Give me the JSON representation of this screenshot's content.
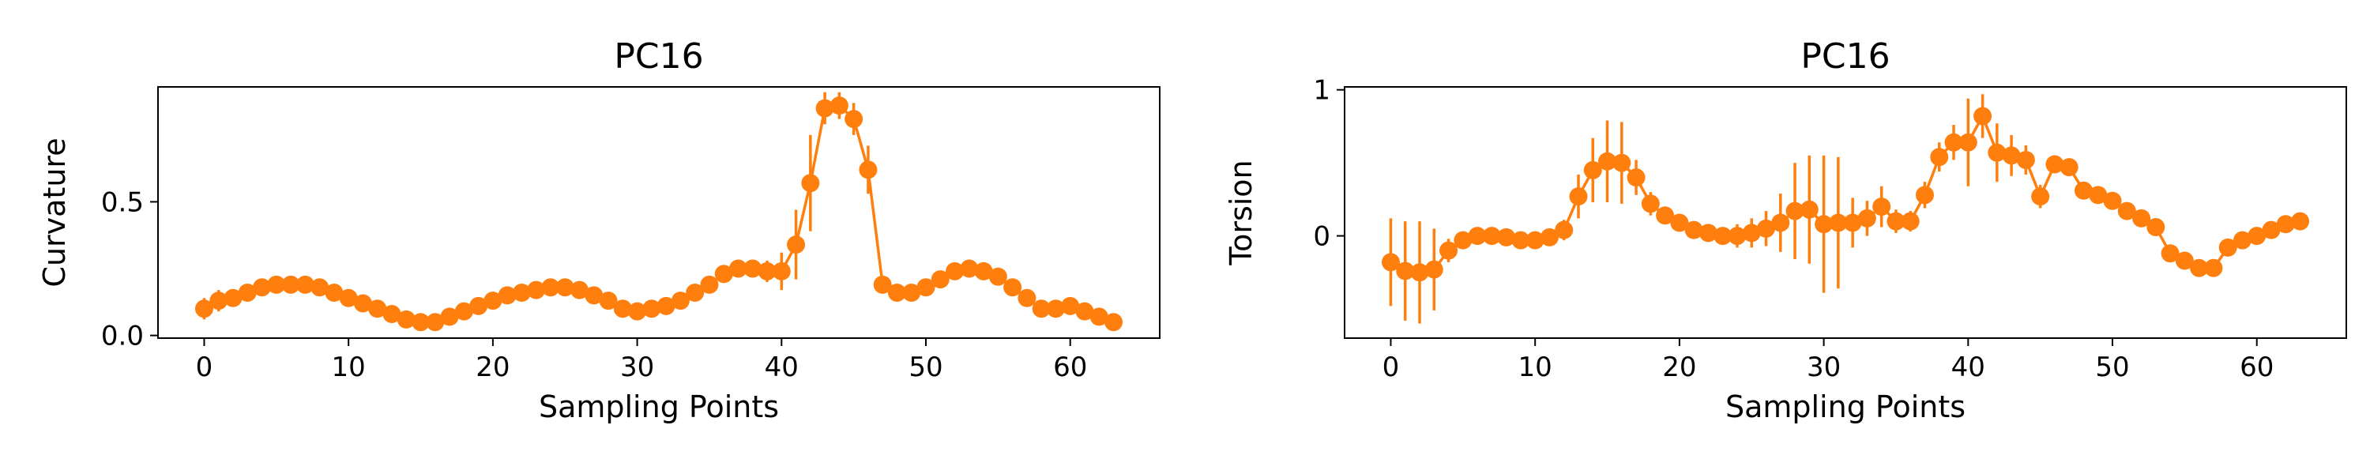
{
  "chart_data": [
    {
      "type": "line",
      "title": "PC16",
      "xlabel": "Sampling Points",
      "ylabel": "Curvature",
      "xlim": [
        -3.2,
        66.2
      ],
      "ylim": [
        -0.01,
        0.93
      ],
      "xticks": [
        0,
        10,
        20,
        30,
        40,
        50,
        60
      ],
      "yticks": [
        0.0,
        0.5
      ],
      "ytick_labels": [
        "0.0",
        "0.5"
      ],
      "color": "#ff7f0e",
      "markers": true,
      "error_bars": true,
      "x": [
        0,
        1,
        2,
        3,
        4,
        5,
        6,
        7,
        8,
        9,
        10,
        11,
        12,
        13,
        14,
        15,
        16,
        17,
        18,
        19,
        20,
        21,
        22,
        23,
        24,
        25,
        26,
        27,
        28,
        29,
        30,
        31,
        32,
        33,
        34,
        35,
        36,
        37,
        38,
        39,
        40,
        41,
        42,
        43,
        44,
        45,
        46,
        47,
        48,
        49,
        50,
        51,
        52,
        53,
        54,
        55,
        56,
        57,
        58,
        59,
        60,
        61,
        62,
        63
      ],
      "y": [
        0.1,
        0.13,
        0.14,
        0.16,
        0.18,
        0.19,
        0.19,
        0.19,
        0.18,
        0.16,
        0.14,
        0.12,
        0.1,
        0.08,
        0.06,
        0.05,
        0.05,
        0.07,
        0.09,
        0.11,
        0.13,
        0.15,
        0.16,
        0.17,
        0.18,
        0.18,
        0.17,
        0.15,
        0.13,
        0.1,
        0.09,
        0.1,
        0.11,
        0.13,
        0.16,
        0.19,
        0.23,
        0.25,
        0.25,
        0.24,
        0.24,
        0.34,
        0.57,
        0.85,
        0.86,
        0.81,
        0.62,
        0.19,
        0.16,
        0.16,
        0.18,
        0.21,
        0.24,
        0.25,
        0.24,
        0.22,
        0.18,
        0.14,
        0.1,
        0.1,
        0.11,
        0.09,
        0.07,
        0.05
      ],
      "yerr": [
        0.04,
        0.04,
        0.03,
        0.03,
        0.03,
        0.02,
        0.02,
        0.02,
        0.02,
        0.02,
        0.02,
        0.02,
        0.02,
        0.02,
        0.02,
        0.02,
        0.02,
        0.02,
        0.02,
        0.02,
        0.02,
        0.02,
        0.02,
        0.02,
        0.02,
        0.02,
        0.02,
        0.02,
        0.02,
        0.02,
        0.02,
        0.02,
        0.02,
        0.02,
        0.03,
        0.03,
        0.03,
        0.03,
        0.03,
        0.04,
        0.07,
        0.13,
        0.18,
        0.06,
        0.05,
        0.06,
        0.09,
        0.03,
        0.02,
        0.02,
        0.02,
        0.02,
        0.02,
        0.02,
        0.02,
        0.02,
        0.02,
        0.02,
        0.02,
        0.02,
        0.02,
        0.02,
        0.02,
        0.02
      ]
    },
    {
      "type": "line",
      "title": "PC16",
      "xlabel": "Sampling Points",
      "ylabel": "Torsion",
      "xlim": [
        -3.2,
        66.2
      ],
      "ylim": [
        -0.7,
        1.02
      ],
      "xticks": [
        0,
        10,
        20,
        30,
        40,
        50,
        60
      ],
      "yticks": [
        0,
        1
      ],
      "ytick_labels": [
        "0",
        "1"
      ],
      "color": "#ff7f0e",
      "markers": true,
      "error_bars": true,
      "x": [
        0,
        1,
        2,
        3,
        4,
        5,
        6,
        7,
        8,
        9,
        10,
        11,
        12,
        13,
        14,
        15,
        16,
        17,
        18,
        19,
        20,
        21,
        22,
        23,
        24,
        25,
        26,
        27,
        28,
        29,
        30,
        31,
        32,
        33,
        34,
        35,
        36,
        37,
        38,
        39,
        40,
        41,
        42,
        43,
        44,
        45,
        46,
        47,
        48,
        49,
        50,
        51,
        52,
        53,
        54,
        55,
        56,
        57,
        58,
        59,
        60,
        61,
        62,
        63
      ],
      "y": [
        -0.18,
        -0.24,
        -0.25,
        -0.23,
        -0.1,
        -0.03,
        0.0,
        0.0,
        -0.01,
        -0.03,
        -0.03,
        -0.01,
        0.04,
        0.27,
        0.45,
        0.51,
        0.5,
        0.4,
        0.22,
        0.14,
        0.09,
        0.04,
        0.02,
        0.0,
        0.0,
        0.02,
        0.05,
        0.09,
        0.17,
        0.18,
        0.08,
        0.09,
        0.09,
        0.12,
        0.2,
        0.1,
        0.1,
        0.28,
        0.54,
        0.64,
        0.64,
        0.82,
        0.57,
        0.55,
        0.52,
        0.27,
        0.49,
        0.47,
        0.31,
        0.28,
        0.24,
        0.17,
        0.12,
        0.06,
        -0.12,
        -0.17,
        -0.22,
        -0.22,
        -0.08,
        -0.03,
        0.0,
        0.04,
        0.08,
        0.1
      ],
      "yerr": [
        0.3,
        0.34,
        0.35,
        0.28,
        0.08,
        0.05,
        0.04,
        0.04,
        0.04,
        0.04,
        0.04,
        0.04,
        0.07,
        0.15,
        0.22,
        0.28,
        0.28,
        0.12,
        0.08,
        0.06,
        0.05,
        0.05,
        0.06,
        0.06,
        0.08,
        0.1,
        0.12,
        0.2,
        0.33,
        0.37,
        0.47,
        0.45,
        0.17,
        0.12,
        0.14,
        0.08,
        0.07,
        0.09,
        0.1,
        0.12,
        0.3,
        0.15,
        0.2,
        0.14,
        0.1,
        0.08,
        0.05,
        0.05,
        0.05,
        0.05,
        0.05,
        0.05,
        0.05,
        0.05,
        0.05,
        0.05,
        0.05,
        0.05,
        0.05,
        0.05,
        0.05,
        0.05,
        0.05,
        0.05
      ]
    }
  ]
}
